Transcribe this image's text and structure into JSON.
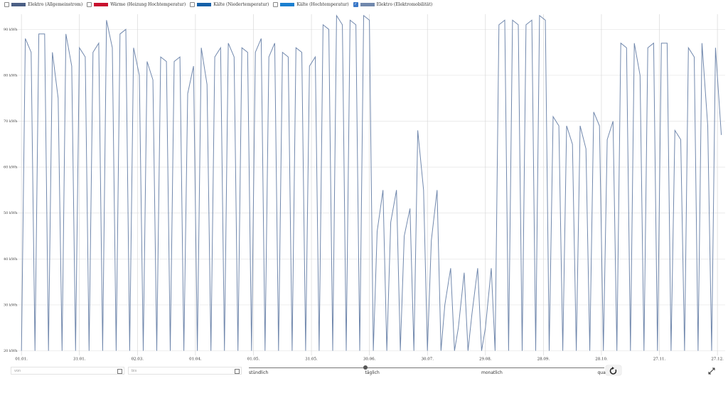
{
  "chart_data": {
    "type": "line",
    "series": [
      {
        "name": "Elektro (Allgemeinstrom)",
        "color": "#4b5f84",
        "checked": false
      },
      {
        "name": "Wärme (Heizung Hochtemperatur)",
        "color": "#c8102e",
        "checked": false
      },
      {
        "name": "Kälte (Niedertemperatur)",
        "color": "#1560a8",
        "checked": false
      },
      {
        "name": "Kälte (Hochtemperatur)",
        "color": "#1a7fd0",
        "checked": false
      },
      {
        "name": "Elektro (Elektromobilität)",
        "color": "#7188ad",
        "checked": true,
        "values": [
          20,
          88,
          85,
          20,
          89,
          89,
          20,
          85,
          75,
          20,
          89,
          82,
          20,
          86,
          84,
          20,
          85,
          87,
          20,
          92,
          86,
          20,
          89,
          90,
          20,
          86,
          80,
          20,
          83,
          79,
          20,
          84,
          83,
          20,
          83,
          84,
          20,
          76,
          82,
          20,
          86,
          78,
          20,
          84,
          86,
          20,
          87,
          84,
          20,
          86,
          85,
          20,
          85,
          88,
          20,
          84,
          87,
          20,
          85,
          84,
          20,
          86,
          85,
          20,
          82,
          84,
          20,
          91,
          90,
          20,
          93,
          91,
          20,
          92,
          91,
          20,
          93,
          92,
          20,
          46,
          55,
          20,
          48,
          55,
          20,
          45,
          51,
          20,
          68,
          55,
          20,
          44,
          55,
          20,
          30,
          38,
          20,
          25,
          37,
          20,
          28,
          38,
          20,
          25,
          38,
          20,
          91,
          92,
          20,
          92,
          91,
          20,
          91,
          92,
          20,
          93,
          92,
          20,
          71,
          69,
          20,
          69,
          65,
          20,
          69,
          64,
          20,
          72,
          69,
          20,
          66,
          70,
          20,
          87,
          86,
          20,
          87,
          80,
          20,
          86,
          87,
          20,
          87,
          87,
          20,
          68,
          66,
          20,
          86,
          84,
          20,
          87,
          69,
          20,
          86,
          67
        ]
      }
    ],
    "x": [
      0,
      2,
      5,
      7,
      9,
      12,
      14,
      16,
      19,
      21,
      23,
      26,
      28,
      30,
      33,
      35,
      37,
      40,
      42,
      44,
      47,
      49,
      51,
      54,
      56,
      58,
      61,
      63,
      65,
      68,
      70,
      72,
      75,
      77,
      79,
      82,
      84,
      86,
      89,
      91,
      93,
      96,
      98,
      100,
      103,
      105,
      107,
      110,
      112,
      114,
      117,
      119,
      121,
      124,
      126,
      128,
      131,
      133,
      135,
      138,
      140,
      142,
      145,
      147,
      149,
      152,
      154,
      156,
      159,
      161,
      163,
      166,
      168,
      170,
      173,
      175,
      177,
      180,
      182,
      184,
      187,
      189,
      191,
      194,
      196,
      198,
      201,
      203,
      205,
      208,
      210,
      212,
      215,
      217,
      219,
      222,
      224,
      226,
      229,
      231,
      233,
      236,
      238,
      240,
      243,
      245,
      247,
      250,
      252,
      254,
      257,
      259,
      261,
      264,
      266,
      268,
      271,
      273,
      275,
      278,
      280,
      282,
      285,
      287,
      289,
      292,
      294,
      296,
      299,
      301,
      303,
      306,
      308,
      310,
      313,
      315,
      317,
      320,
      322,
      324,
      327,
      329,
      331,
      334,
      336,
      338,
      341,
      343,
      345,
      348,
      350,
      352,
      355,
      357,
      359,
      362
    ],
    "xlim": [
      -3,
      364
    ],
    "xticks": [
      {
        "value": 0,
        "label": "01.01."
      },
      {
        "value": 30,
        "label": "31.01."
      },
      {
        "value": 60,
        "label": "02.03."
      },
      {
        "value": 90,
        "label": "01.04."
      },
      {
        "value": 120,
        "label": "01.05."
      },
      {
        "value": 150,
        "label": "31.05."
      },
      {
        "value": 180,
        "label": "30.06."
      },
      {
        "value": 210,
        "label": "30.07."
      },
      {
        "value": 240,
        "label": "29.08."
      },
      {
        "value": 270,
        "label": "28.09."
      },
      {
        "value": 300,
        "label": "28.10."
      },
      {
        "value": 330,
        "label": "27.11."
      },
      {
        "value": 360,
        "label": "27.12."
      }
    ],
    "ylim": [
      19,
      93.3
    ],
    "yticks": [
      {
        "value": 20,
        "label": "20 kWh"
      },
      {
        "value": 30,
        "label": "30 kWh"
      },
      {
        "value": 40,
        "label": "40 kWh"
      },
      {
        "value": 50,
        "label": "50 kWh"
      },
      {
        "value": 60,
        "label": "60 kWh"
      },
      {
        "value": 70,
        "label": "70 kWh"
      },
      {
        "value": 80,
        "label": "80 kWh"
      },
      {
        "value": 90,
        "label": "90 kWh"
      }
    ],
    "grid": true
  },
  "controls": {
    "from_placeholder": "von",
    "to_placeholder": "bis",
    "resolutions": [
      "stündlich",
      "täglich",
      "monatlich",
      "quar"
    ],
    "selected_resolution": 1
  }
}
